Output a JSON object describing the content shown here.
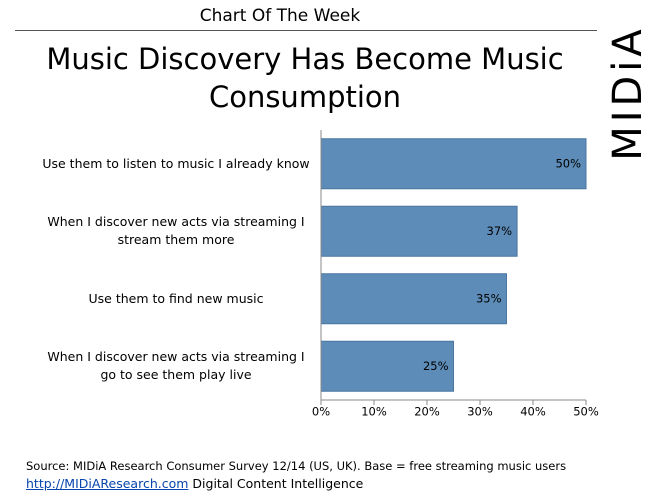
{
  "header": {
    "label": "Chart Of The Week",
    "logo": "MIDiA"
  },
  "chart_data": {
    "type": "hbar",
    "title": "Music Discovery Has Become Music Consumption",
    "categories": [
      "Use them to listen to music I already know",
      "When I discover new acts via streaming I stream them more",
      "Use them to find new music",
      "When I discover new acts via streaming I go to see them play live"
    ],
    "values": [
      50,
      37,
      35,
      25
    ],
    "value_labels": [
      "50%",
      "37%",
      "35%",
      "25%"
    ],
    "color": "#5d8cb8",
    "xlim": [
      0,
      50
    ],
    "xticks": [
      {
        "value": 0,
        "label": "0%"
      },
      {
        "value": 10,
        "label": "10%"
      },
      {
        "value": 20,
        "label": "20%"
      },
      {
        "value": 30,
        "label": "30%"
      },
      {
        "value": 40,
        "label": "40%"
      },
      {
        "value": 50,
        "label": "50%"
      }
    ]
  },
  "footer": {
    "source": "Source: MIDiA Research Consumer Survey 12/14 (US, UK). Base = free streaming music users",
    "link": "http://MIDiAResearch.com",
    "tagline": "Digital Content Intelligence"
  }
}
